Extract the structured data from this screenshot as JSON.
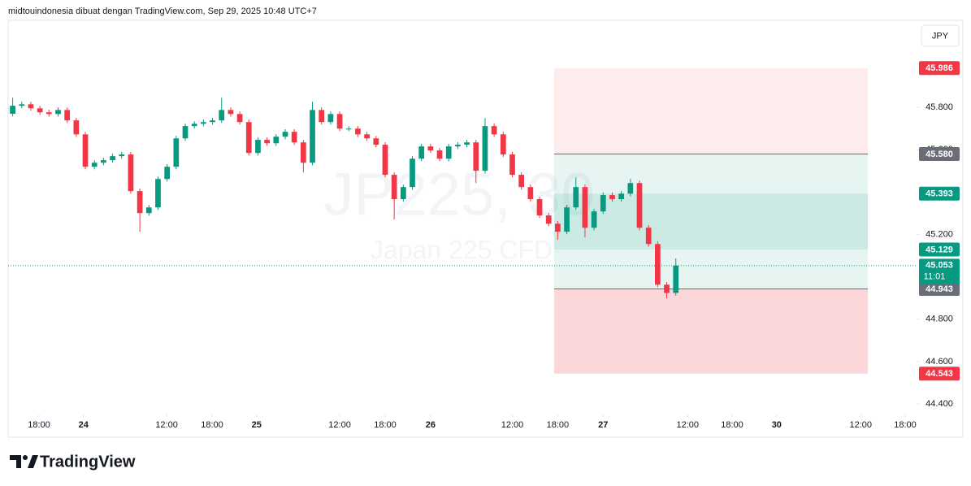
{
  "header": {
    "attribution": "midtouindonesia dibuat dengan TradingView.com, Sep 29, 2025 10:48 UTC+7"
  },
  "currency_button": "JPY",
  "brand": "TradingView",
  "chart_data": {
    "type": "candlestick",
    "watermark_symbol": "JP225, 30",
    "watermark_name": "Japan 225 CFD",
    "up_color": "#089981",
    "down_color": "#f23645",
    "x": [
      1,
      3,
      5,
      7,
      9,
      11,
      13,
      15,
      17,
      19,
      21,
      23,
      25,
      27,
      29,
      31,
      33,
      35,
      37,
      39,
      41,
      43,
      45,
      47,
      49,
      51,
      53,
      55,
      57,
      59,
      61,
      63,
      65,
      67,
      69,
      71,
      73,
      75,
      77,
      79,
      81,
      83,
      85,
      87,
      89,
      91,
      93,
      95,
      97,
      99,
      101,
      103,
      105,
      107,
      109,
      111,
      113,
      115,
      117,
      119,
      121,
      123,
      125,
      127,
      129,
      131,
      133,
      135,
      137,
      139,
      141,
      143,
      145,
      147
    ],
    "open": [
      45.77,
      45.808,
      45.815,
      45.796,
      45.777,
      45.769,
      45.788,
      45.739,
      45.673,
      45.52,
      45.539,
      45.551,
      45.57,
      45.578,
      45.405,
      45.301,
      45.328,
      45.462,
      45.52,
      45.654,
      45.712,
      45.723,
      45.731,
      45.739,
      45.788,
      45.769,
      45.731,
      45.585,
      45.647,
      45.631,
      45.662,
      45.685,
      45.635,
      45.539,
      45.788,
      45.731,
      45.769,
      45.7,
      45.7,
      45.673,
      45.654,
      45.624,
      45.482,
      45.367,
      45.424,
      45.558,
      45.616,
      45.597,
      45.558,
      45.616,
      45.624,
      45.635,
      45.501,
      45.712,
      45.673,
      45.578,
      45.482,
      45.424,
      45.367,
      45.29,
      45.251,
      45.213,
      45.328,
      45.424,
      45.232,
      45.309,
      45.386,
      45.367,
      45.393,
      45.443,
      45.232,
      45.155,
      44.963,
      44.924
    ],
    "high": [
      45.846,
      45.827,
      45.827,
      45.808,
      45.789,
      45.8,
      45.8,
      45.751,
      45.685,
      45.551,
      45.563,
      45.582,
      45.59,
      45.59,
      45.417,
      45.34,
      45.474,
      45.532,
      45.666,
      45.724,
      45.735,
      45.743,
      45.751,
      45.846,
      45.8,
      45.781,
      45.743,
      45.659,
      45.659,
      45.674,
      45.697,
      45.697,
      45.647,
      45.827,
      45.8,
      45.781,
      45.781,
      45.712,
      45.712,
      45.685,
      45.666,
      45.636,
      45.494,
      45.436,
      45.57,
      45.628,
      45.628,
      45.609,
      45.628,
      45.636,
      45.647,
      45.647,
      45.75,
      45.724,
      45.685,
      45.59,
      45.494,
      45.436,
      45.379,
      45.302,
      45.263,
      45.34,
      45.47,
      45.436,
      45.321,
      45.398,
      45.398,
      45.405,
      45.462,
      45.455,
      45.244,
      45.167,
      44.975,
      45.087
    ],
    "low": [
      45.758,
      45.796,
      45.784,
      45.765,
      45.757,
      45.757,
      45.727,
      45.661,
      45.508,
      45.508,
      45.527,
      45.539,
      45.558,
      45.393,
      45.213,
      45.289,
      45.316,
      45.45,
      45.508,
      45.642,
      45.7,
      45.711,
      45.719,
      45.727,
      45.757,
      45.719,
      45.573,
      45.573,
      45.619,
      45.619,
      45.65,
      45.623,
      45.493,
      45.527,
      45.719,
      45.719,
      45.688,
      45.688,
      45.661,
      45.642,
      45.612,
      45.47,
      45.271,
      45.355,
      45.412,
      45.546,
      45.585,
      45.546,
      45.546,
      45.604,
      45.612,
      45.443,
      45.489,
      45.661,
      45.566,
      45.47,
      45.412,
      45.355,
      45.278,
      45.239,
      45.175,
      45.201,
      45.316,
      45.186,
      45.22,
      45.297,
      45.355,
      45.355,
      45.381,
      45.22,
      45.143,
      44.951,
      44.898,
      44.912
    ],
    "close": [
      45.808,
      45.815,
      45.796,
      45.777,
      45.769,
      45.788,
      45.739,
      45.673,
      45.52,
      45.539,
      45.551,
      45.57,
      45.578,
      45.405,
      45.301,
      45.328,
      45.462,
      45.52,
      45.654,
      45.712,
      45.723,
      45.731,
      45.739,
      45.788,
      45.769,
      45.731,
      45.585,
      45.647,
      45.631,
      45.662,
      45.685,
      45.635,
      45.539,
      45.788,
      45.731,
      45.769,
      45.7,
      45.7,
      45.673,
      45.654,
      45.624,
      45.482,
      45.367,
      45.424,
      45.558,
      45.616,
      45.597,
      45.558,
      45.616,
      45.624,
      45.635,
      45.501,
      45.712,
      45.673,
      45.578,
      45.482,
      45.424,
      45.367,
      45.29,
      45.251,
      45.213,
      45.328,
      45.424,
      45.232,
      45.309,
      45.386,
      45.367,
      45.393,
      45.443,
      45.232,
      45.155,
      44.963,
      44.924,
      45.053
    ],
    "xlim": [
      0,
      200
    ],
    "xticks": [
      {
        "value": 6.8,
        "label": "18:00"
      },
      {
        "value": 16.6,
        "label": "24"
      },
      {
        "value": 34.9,
        "label": "12:00"
      },
      {
        "value": 44.9,
        "label": "18:00"
      },
      {
        "value": 54.7,
        "label": "25"
      },
      {
        "value": 73,
        "label": "12:00"
      },
      {
        "value": 83,
        "label": "18:00"
      },
      {
        "value": 93,
        "label": "26"
      },
      {
        "value": 111,
        "label": "12:00"
      },
      {
        "value": 121,
        "label": "18:00"
      },
      {
        "value": 131,
        "label": "27"
      },
      {
        "value": 149.6,
        "label": "12:00"
      },
      {
        "value": 159.4,
        "label": "18:00"
      },
      {
        "value": 169.2,
        "label": "30"
      },
      {
        "value": 187.7,
        "label": "12:00"
      },
      {
        "value": 197.5,
        "label": "18:00"
      }
    ],
    "ylim": [
      44.35,
      46.2
    ],
    "yticks": [
      {
        "value": 45.8,
        "label": "45.800"
      },
      {
        "value": 45.6,
        "label": "45.600"
      },
      {
        "value": 45.2,
        "label": "45.200"
      },
      {
        "value": 44.8,
        "label": "44.800"
      },
      {
        "value": 44.6,
        "label": "44.600"
      },
      {
        "value": 44.4,
        "label": "44.400"
      }
    ],
    "zones": [
      {
        "from": 45.986,
        "to": 45.58,
        "color": "rgba(242,54,69,0.10)"
      },
      {
        "from": 45.58,
        "to": 44.943,
        "color": "rgba(8,153,129,0.10)"
      },
      {
        "from": 45.393,
        "to": 45.129,
        "color": "rgba(8,153,129,0.12)"
      },
      {
        "from": 44.943,
        "to": 44.543,
        "color": "rgba(242,54,69,0.20)"
      }
    ],
    "zone_x": [
      120.2,
      189.3
    ],
    "price_labels": [
      {
        "value": 45.986,
        "label": "45.986",
        "color": "#f23645"
      },
      {
        "value": 45.58,
        "label": "45.580",
        "color": "#6a6d78"
      },
      {
        "value": 45.393,
        "label": "45.393",
        "color": "#089981"
      },
      {
        "value": 45.129,
        "label": "45.129",
        "color": "#089981"
      },
      {
        "value": 44.943,
        "label": "44.943",
        "color": "#6a6d78"
      },
      {
        "value": 44.543,
        "label": "44.543",
        "color": "#f23645"
      }
    ],
    "current": {
      "value": 45.053,
      "label": "45.053",
      "countdown": "11:01",
      "color": "#089981"
    }
  }
}
